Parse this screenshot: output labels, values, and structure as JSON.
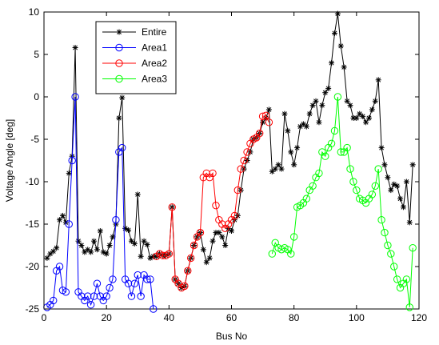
{
  "chart_data": {
    "type": "line",
    "title": "",
    "xlabel": "Bus No",
    "ylabel": "Voltage Angle [deg]",
    "xlim": [
      0,
      120
    ],
    "ylim": [
      -25,
      10
    ],
    "xticks": [
      0,
      20,
      40,
      60,
      80,
      100,
      120
    ],
    "yticks": [
      -25,
      -20,
      -15,
      -10,
      -5,
      0,
      5,
      10
    ],
    "grid": false,
    "legend_position": "top-left",
    "series": [
      {
        "name": "Entire",
        "color": "#000000",
        "marker": "asterisk",
        "x": [
          1,
          2,
          3,
          4,
          5,
          6,
          7,
          8,
          9,
          10,
          11,
          12,
          13,
          14,
          15,
          16,
          17,
          18,
          19,
          20,
          21,
          22,
          23,
          24,
          25,
          26,
          27,
          28,
          29,
          30,
          31,
          32,
          33,
          34,
          35,
          36,
          37,
          38,
          39,
          40,
          41,
          42,
          43,
          44,
          45,
          46,
          47,
          48,
          49,
          50,
          51,
          52,
          53,
          54,
          55,
          56,
          57,
          58,
          59,
          60,
          61,
          62,
          63,
          64,
          65,
          66,
          67,
          68,
          69,
          70,
          71,
          72,
          73,
          74,
          75,
          76,
          77,
          78,
          79,
          80,
          81,
          82,
          83,
          84,
          85,
          86,
          87,
          88,
          89,
          90,
          91,
          92,
          93,
          94,
          95,
          96,
          97,
          98,
          99,
          100,
          101,
          102,
          103,
          104,
          105,
          106,
          107,
          108,
          109,
          110,
          111,
          112,
          113,
          114,
          115,
          116,
          117,
          118
        ],
        "y": [
          -19.0,
          -18.5,
          -18.2,
          -17.8,
          -14.5,
          -14.0,
          -14.8,
          -9.0,
          -7.0,
          5.8,
          -17.0,
          -17.5,
          -18.3,
          -18.0,
          -18.3,
          -17.0,
          -18.0,
          -15.8,
          -18.3,
          -18.5,
          -17.5,
          -16.5,
          -15.0,
          -2.5,
          -0.1,
          -15.5,
          -15.7,
          -17.0,
          -17.3,
          -11.5,
          -18.8,
          -17.0,
          -17.4,
          -19.0,
          -18.8,
          -18.8,
          -18.5,
          -18.7,
          -18.7,
          -18.5,
          -13.0,
          -21.5,
          -22.0,
          -22.5,
          -22.3,
          -20.5,
          -19.0,
          -17.5,
          -16.5,
          -16.0,
          -18.0,
          -19.5,
          -19.0,
          -17.0,
          -16.0,
          -16.0,
          -16.5,
          -17.5,
          -15.5,
          -15.8,
          -14.5,
          -14.0,
          -11.0,
          -8.5,
          -7.5,
          -6.5,
          -5.0,
          -4.8,
          -4.3,
          -3.0,
          -2.5,
          -1.5,
          -8.8,
          -8.5,
          -8.0,
          -8.5,
          -2.0,
          -4.0,
          -6.5,
          -8.0,
          -6.0,
          -3.5,
          -3.2,
          -3.5,
          -2.0,
          -1.0,
          -0.5,
          -3.0,
          -1.0,
          0.5,
          1.0,
          4.0,
          7.5,
          9.8,
          6.0,
          3.5,
          -0.5,
          -1.0,
          -2.5,
          -2.5,
          -2.0,
          -2.3,
          -3.0,
          -2.5,
          -1.5,
          -0.5,
          2.0,
          -6.0,
          -8.0,
          -9.5,
          -11.0,
          -10.3,
          -10.5,
          -12.0,
          -13.0,
          -10.0,
          -14.8,
          -8.0
        ]
      },
      {
        "name": "Area1",
        "color": "#0000ff",
        "marker": "circle",
        "x": [
          1,
          2,
          3,
          4,
          5,
          6,
          7,
          8,
          9,
          10,
          11,
          12,
          13,
          14,
          15,
          16,
          17,
          18,
          19,
          20,
          21,
          22,
          23,
          24,
          25,
          26,
          27,
          28,
          29,
          30,
          31,
          32,
          33,
          34,
          35
        ],
        "y": [
          -24.8,
          -24.5,
          -24.0,
          -20.5,
          -20.0,
          -22.8,
          -23.0,
          -15.0,
          -7.5,
          0.0,
          -23.0,
          -23.5,
          -24.0,
          -23.5,
          -24.5,
          -23.5,
          -22.0,
          -23.5,
          -24.0,
          -23.5,
          -22.5,
          -21.5,
          -14.5,
          -6.5,
          -6.0,
          -21.5,
          -22.0,
          -23.5,
          -22.0,
          -21.0,
          -23.5,
          -21.0,
          -21.5,
          -21.5,
          -25.0
        ]
      },
      {
        "name": "Area2",
        "color": "#ff0000",
        "marker": "circle",
        "x": [
          36,
          37,
          38,
          39,
          40,
          41,
          42,
          43,
          44,
          45,
          46,
          47,
          48,
          49,
          50,
          51,
          52,
          53,
          54,
          55,
          56,
          57,
          58,
          59,
          60,
          61,
          62,
          63,
          64,
          65,
          66,
          67,
          68,
          69,
          70,
          71,
          72
        ],
        "y": [
          -18.8,
          -18.5,
          -18.7,
          -18.7,
          -18.5,
          -13.0,
          -21.5,
          -22.0,
          -22.5,
          -22.3,
          -20.5,
          -19.0,
          -17.5,
          -16.5,
          -16.0,
          -9.5,
          -9.0,
          -9.5,
          -9.0,
          -12.8,
          -14.5,
          -15.0,
          -15.5,
          -15.0,
          -14.5,
          -14.0,
          -11.0,
          -8.5,
          -7.5,
          -6.5,
          -5.5,
          -5.0,
          -4.8,
          -4.3,
          -2.3,
          -2.2,
          -3.0
        ]
      },
      {
        "name": "Area3",
        "color": "#00ff00",
        "marker": "circle",
        "x": [
          73,
          74,
          75,
          76,
          77,
          78,
          79,
          80,
          81,
          82,
          83,
          84,
          85,
          86,
          87,
          88,
          89,
          90,
          91,
          92,
          93,
          94,
          95,
          96,
          97,
          98,
          99,
          100,
          101,
          102,
          103,
          104,
          105,
          106,
          107,
          108,
          109,
          110,
          111,
          112,
          113,
          114,
          115,
          116,
          117,
          118
        ],
        "y": [
          -18.5,
          -17.2,
          -17.8,
          -18.0,
          -17.8,
          -18.0,
          -18.5,
          -16.5,
          -13.0,
          -12.8,
          -12.5,
          -12.0,
          -11.0,
          -10.5,
          -9.5,
          -9.0,
          -6.5,
          -7.0,
          -6.0,
          -5.5,
          -4.0,
          0.0,
          -6.5,
          -6.5,
          -6.0,
          -8.5,
          -10.0,
          -11.0,
          -12.0,
          -12.2,
          -12.5,
          -12.0,
          -11.5,
          -10.5,
          -8.5,
          -14.5,
          -16.0,
          -17.5,
          -18.5,
          -20.0,
          -21.5,
          -22.5,
          -22.0,
          -21.5,
          -24.8,
          -17.8
        ]
      }
    ]
  }
}
